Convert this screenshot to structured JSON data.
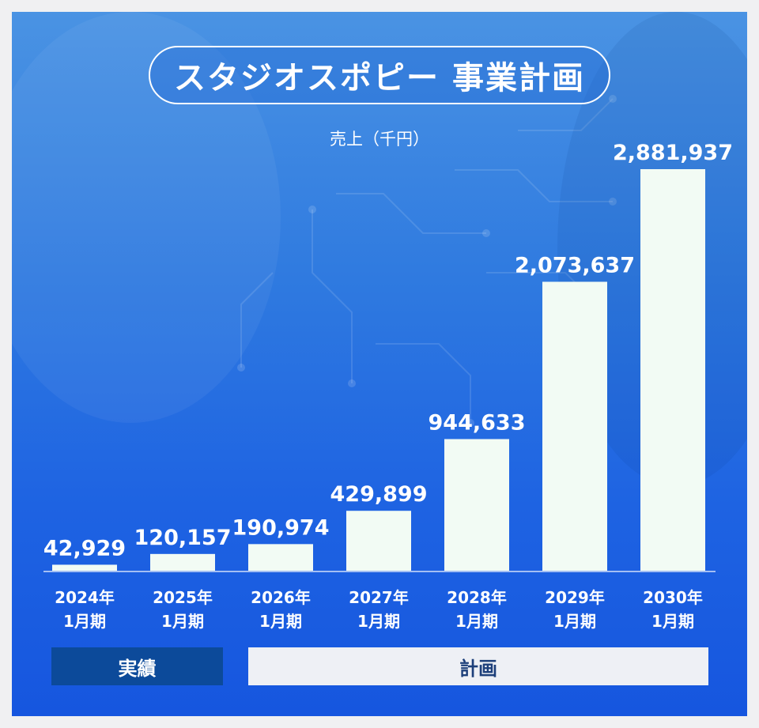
{
  "colors": {
    "bar": "#f2fbf4",
    "value_text": "#ffffff",
    "actual_segment": "#0c4a9a",
    "plan_segment": "#eef0f5"
  },
  "chart_data": {
    "type": "bar",
    "title": "スタジオスポピー 事業計画",
    "ylabel": "売上（千円）",
    "categories": [
      {
        "year": "2024年",
        "period": "1月期"
      },
      {
        "year": "2025年",
        "period": "1月期"
      },
      {
        "year": "2026年",
        "period": "1月期"
      },
      {
        "year": "2027年",
        "period": "1月期"
      },
      {
        "year": "2028年",
        "period": "1月期"
      },
      {
        "year": "2029年",
        "period": "1月期"
      },
      {
        "year": "2030年",
        "period": "1月期"
      }
    ],
    "values": [
      42929,
      120157,
      190974,
      429899,
      944633,
      2073637,
      2881937
    ],
    "value_labels": [
      "42,929",
      "120,157",
      "190,974",
      "429,899",
      "944,633",
      "2,073,637",
      "2,881,937"
    ],
    "ylim": [
      0,
      2881937
    ],
    "grid": false,
    "groups": [
      {
        "label": "実績",
        "categories": [
          "2024年1月期",
          "2025年1月期"
        ]
      },
      {
        "label": "計画",
        "categories": [
          "2026年1月期",
          "2027年1月期",
          "2028年1月期",
          "2029年1月期",
          "2030年1月期"
        ]
      }
    ]
  }
}
